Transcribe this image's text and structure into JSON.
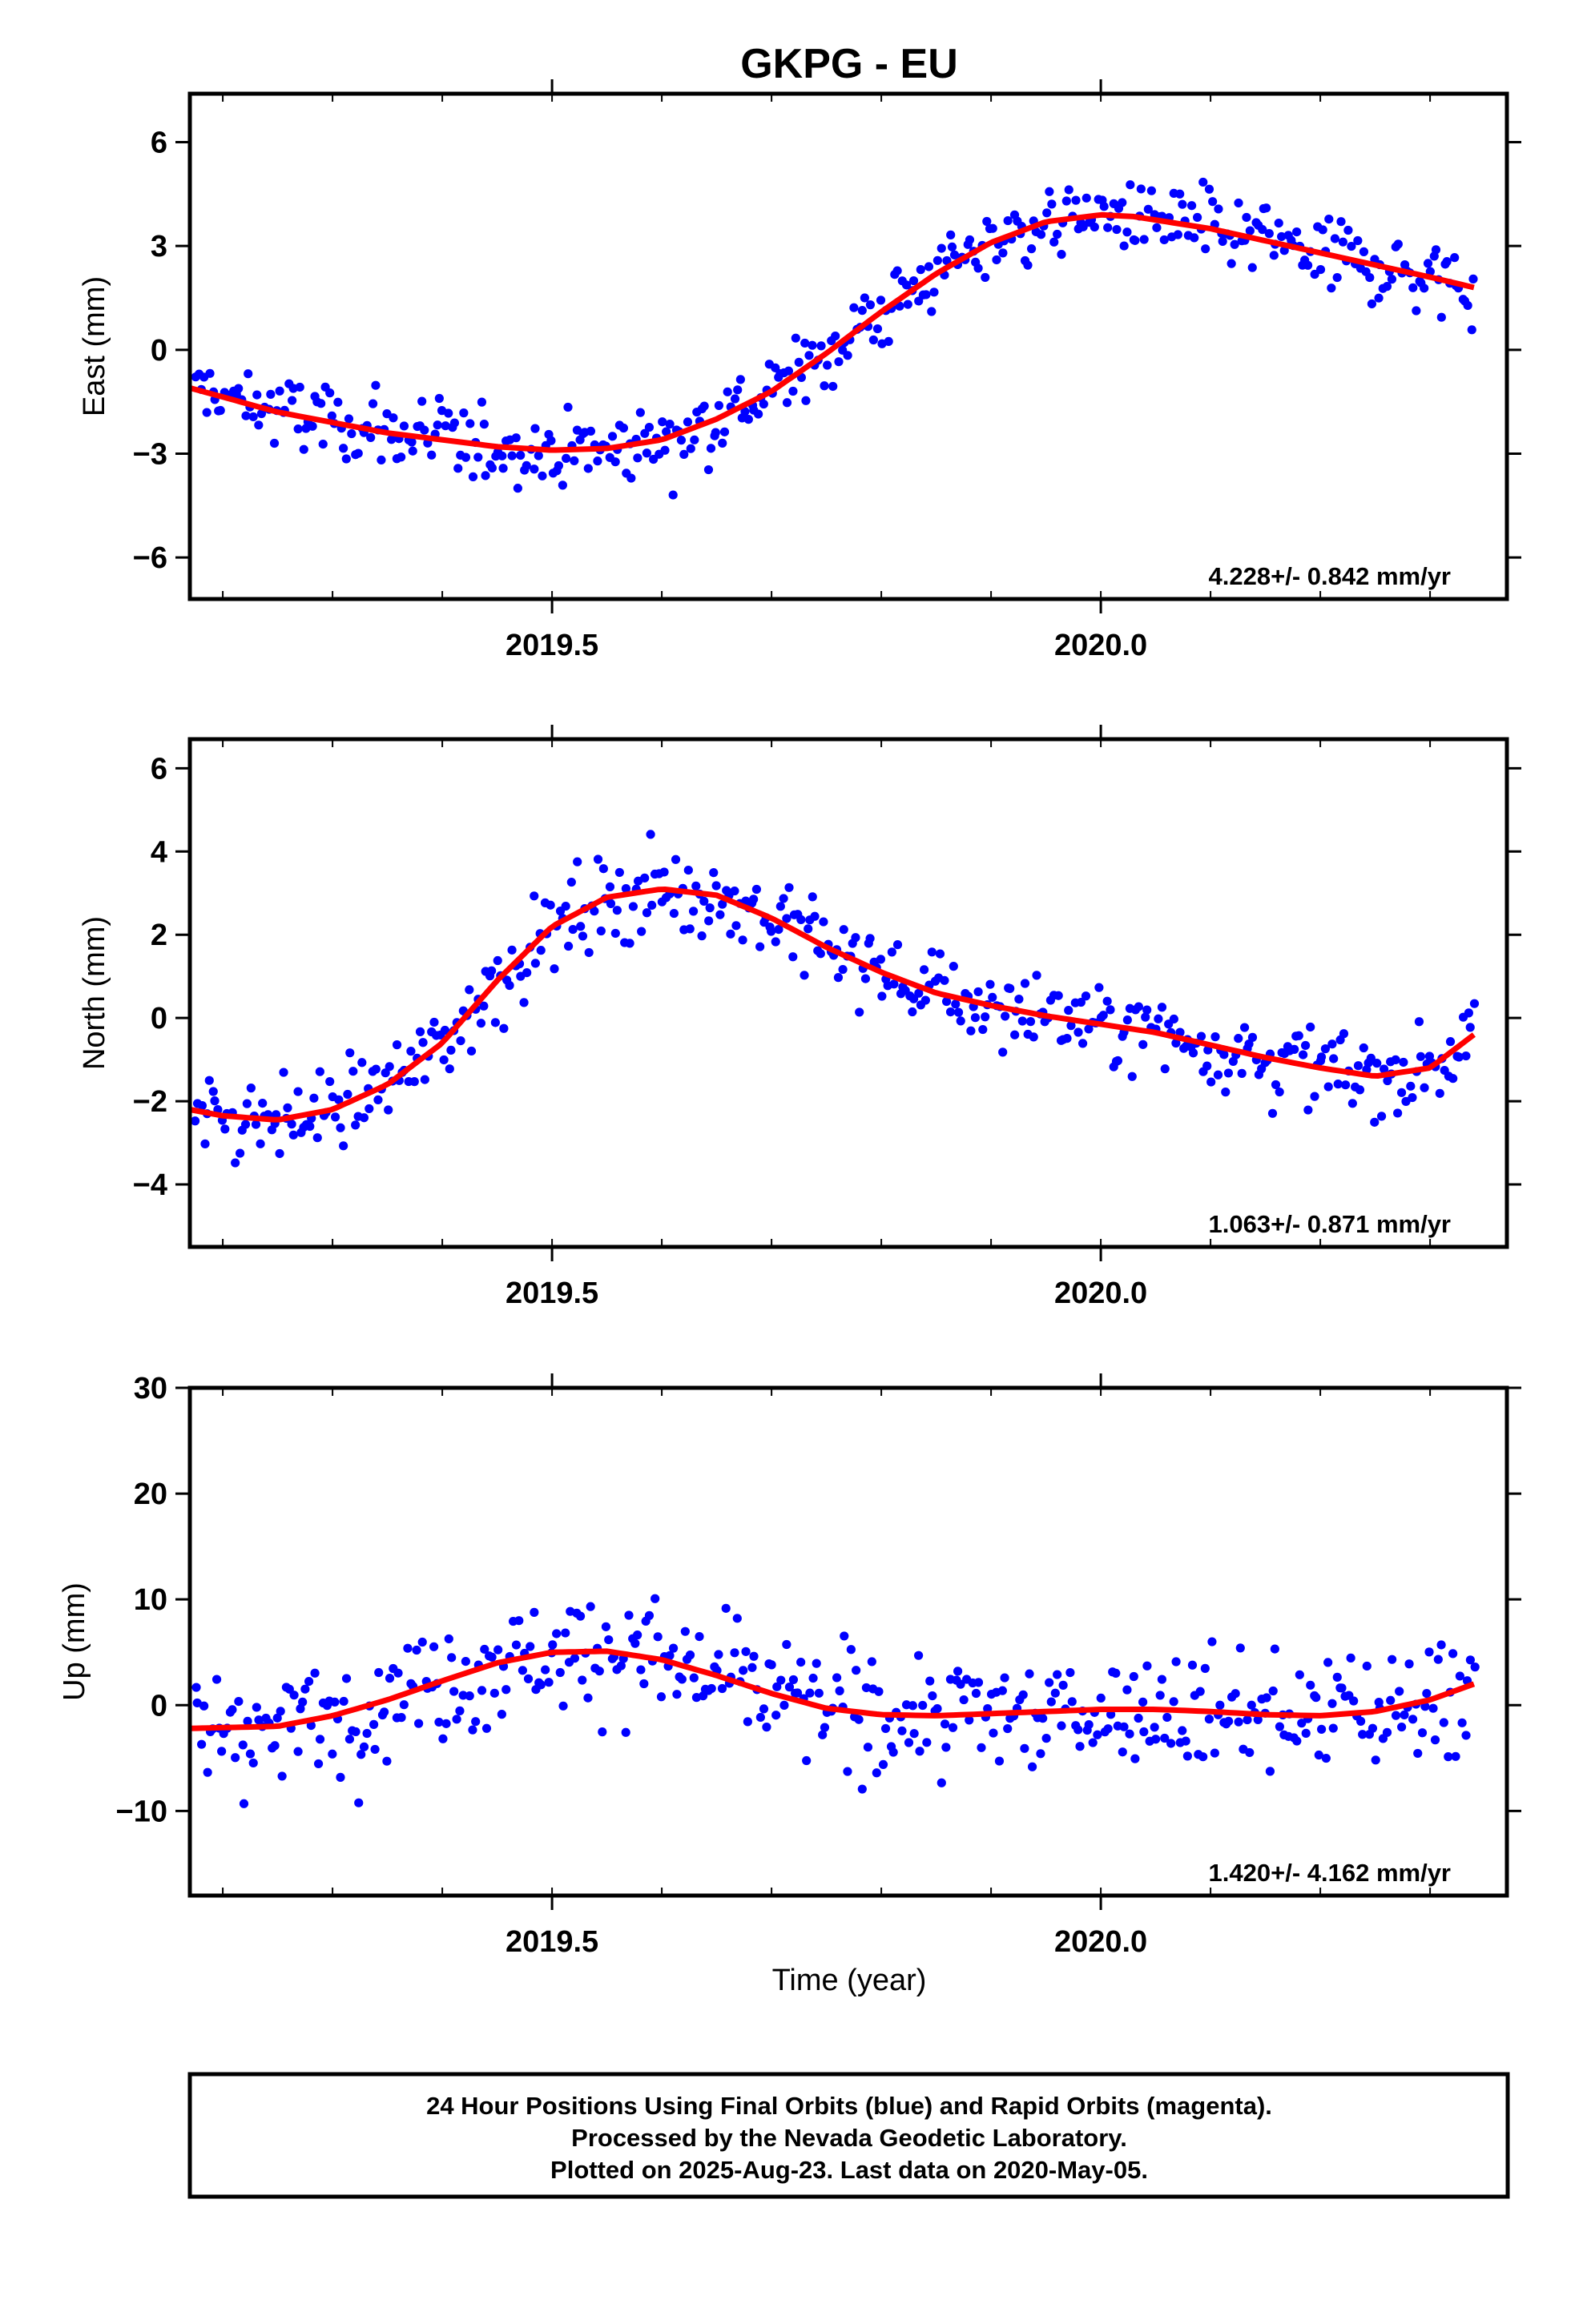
{
  "title": "GKPG - EU",
  "xlabel": "Time (year)",
  "footer": [
    "24 Hour Positions Using Final Orbits (blue) and Rapid Orbits (magenta).",
    "Processed by the Nevada Geodetic Laboratory.",
    "Plotted on 2025-Aug-23. Last data on 2020-May-05."
  ],
  "colors": {
    "points": "#0000ff",
    "fit": "#ff0000",
    "frame": "#000000"
  },
  "chart_data": [
    {
      "type": "scatter",
      "ylabel": "East (mm)",
      "rate_label": "4.228+/- 0.842 mm/yr",
      "xlim": [
        2019.17,
        2020.37
      ],
      "ylim": [
        -7.2,
        7.4
      ],
      "xticks": [
        2019.5,
        2020.0
      ],
      "xtick_labels": [
        "2019.5",
        "2020.0"
      ],
      "yticks": [
        -6,
        -3,
        0,
        3,
        6
      ],
      "ytick_labels": [
        "−6",
        "−3",
        "0",
        "3",
        "6"
      ],
      "fit": {
        "x": [
          2019.17,
          2019.25,
          2019.35,
          2019.45,
          2019.5,
          2019.55,
          2019.6,
          2019.65,
          2019.7,
          2019.75,
          2019.8,
          2019.85,
          2019.9,
          2019.95,
          2020.0,
          2020.03,
          2020.1,
          2020.2,
          2020.3,
          2020.34
        ],
        "y": [
          -1.1,
          -1.8,
          -2.4,
          -2.8,
          -2.9,
          -2.85,
          -2.6,
          -2.0,
          -1.2,
          -0.1,
          1.1,
          2.2,
          3.1,
          3.7,
          3.9,
          3.85,
          3.5,
          2.8,
          2.1,
          1.8
        ]
      },
      "points_spread": 1.1
    },
    {
      "type": "scatter",
      "ylabel": "North (mm)",
      "rate_label": "1.063+/- 0.871 mm/yr",
      "xlim": [
        2019.17,
        2020.37
      ],
      "ylim": [
        -5.5,
        6.7
      ],
      "xticks": [
        2019.5,
        2020.0
      ],
      "xtick_labels": [
        "2019.5",
        "2020.0"
      ],
      "yticks": [
        -4,
        -2,
        0,
        2,
        4,
        6
      ],
      "ytick_labels": [
        "−4",
        "−2",
        "0",
        "2",
        "4",
        "6"
      ],
      "fit": {
        "x": [
          2019.17,
          2019.2,
          2019.25,
          2019.3,
          2019.35,
          2019.4,
          2019.45,
          2019.5,
          2019.55,
          2019.6,
          2019.65,
          2019.7,
          2019.75,
          2019.8,
          2019.85,
          2019.9,
          2019.95,
          2020.0,
          2020.05,
          2020.1,
          2020.15,
          2020.2,
          2020.25,
          2020.3,
          2020.34
        ],
        "y": [
          -2.2,
          -2.35,
          -2.45,
          -2.2,
          -1.6,
          -0.6,
          0.9,
          2.2,
          2.9,
          3.1,
          2.95,
          2.4,
          1.7,
          1.1,
          0.6,
          0.3,
          0.05,
          -0.15,
          -0.35,
          -0.65,
          -0.95,
          -1.2,
          -1.4,
          -1.2,
          -0.4
        ]
      },
      "points_spread": 1.0
    },
    {
      "type": "scatter",
      "ylabel": "Up (mm)",
      "rate_label": "1.420+/- 4.162 mm/yr",
      "xlim": [
        2019.17,
        2020.37
      ],
      "ylim": [
        -18,
        30
      ],
      "xticks": [
        2019.5,
        2020.0
      ],
      "xtick_labels": [
        "2019.5",
        "2020.0"
      ],
      "yticks": [
        -10,
        0,
        10,
        20,
        30
      ],
      "ytick_labels": [
        "−10",
        "0",
        "10",
        "20",
        "30"
      ],
      "fit": {
        "x": [
          2019.17,
          2019.25,
          2019.3,
          2019.35,
          2019.4,
          2019.45,
          2019.5,
          2019.55,
          2019.6,
          2019.65,
          2019.7,
          2019.75,
          2019.8,
          2019.85,
          2019.9,
          2019.95,
          2020.0,
          2020.05,
          2020.1,
          2020.15,
          2020.2,
          2020.25,
          2020.3,
          2020.34
        ],
        "y": [
          -2.2,
          -2.0,
          -1.0,
          0.5,
          2.3,
          4.0,
          5.0,
          5.1,
          4.3,
          2.8,
          1.1,
          -0.3,
          -0.9,
          -1.0,
          -0.8,
          -0.6,
          -0.4,
          -0.4,
          -0.6,
          -0.9,
          -1.0,
          -0.6,
          0.5,
          2.0
        ]
      },
      "points_spread": 5.5
    }
  ]
}
